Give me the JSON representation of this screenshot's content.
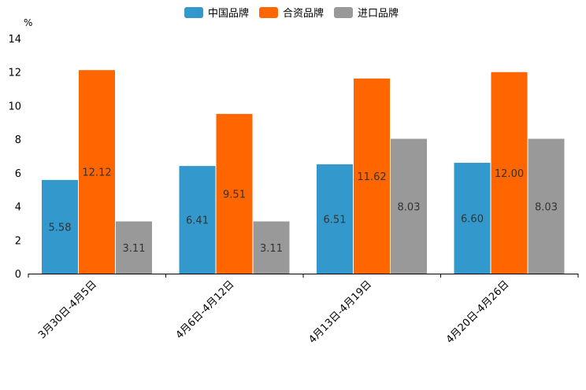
{
  "chart_data": {
    "type": "bar",
    "title": "",
    "ylabel": "%",
    "xlabel": "",
    "ylim": [
      0,
      14
    ],
    "yticks": [
      0,
      2,
      4,
      6,
      8,
      10,
      12,
      14
    ],
    "grid": false,
    "legend_position": "top-center",
    "categories": [
      "3月30日-4月5日",
      "4月6日-4月12日",
      "4月13日-4月19日",
      "4月20日-4月26日"
    ],
    "series": [
      {
        "name": "中国品牌",
        "color": "#3399CC",
        "values": [
          5.58,
          6.41,
          6.51,
          6.6
        ],
        "labels": [
          "5.58",
          "6.41",
          "6.51",
          "6.60"
        ]
      },
      {
        "name": "合资品牌",
        "color": "#FF6600",
        "values": [
          12.12,
          9.51,
          11.62,
          12.0
        ],
        "labels": [
          "12.12",
          "9.51",
          "11.62",
          "12.00"
        ]
      },
      {
        "name": "进口品牌",
        "color": "#999999",
        "values": [
          3.11,
          3.11,
          8.03,
          8.03
        ],
        "labels": [
          "3.11",
          "3.11",
          "8.03",
          "8.03"
        ]
      }
    ]
  }
}
